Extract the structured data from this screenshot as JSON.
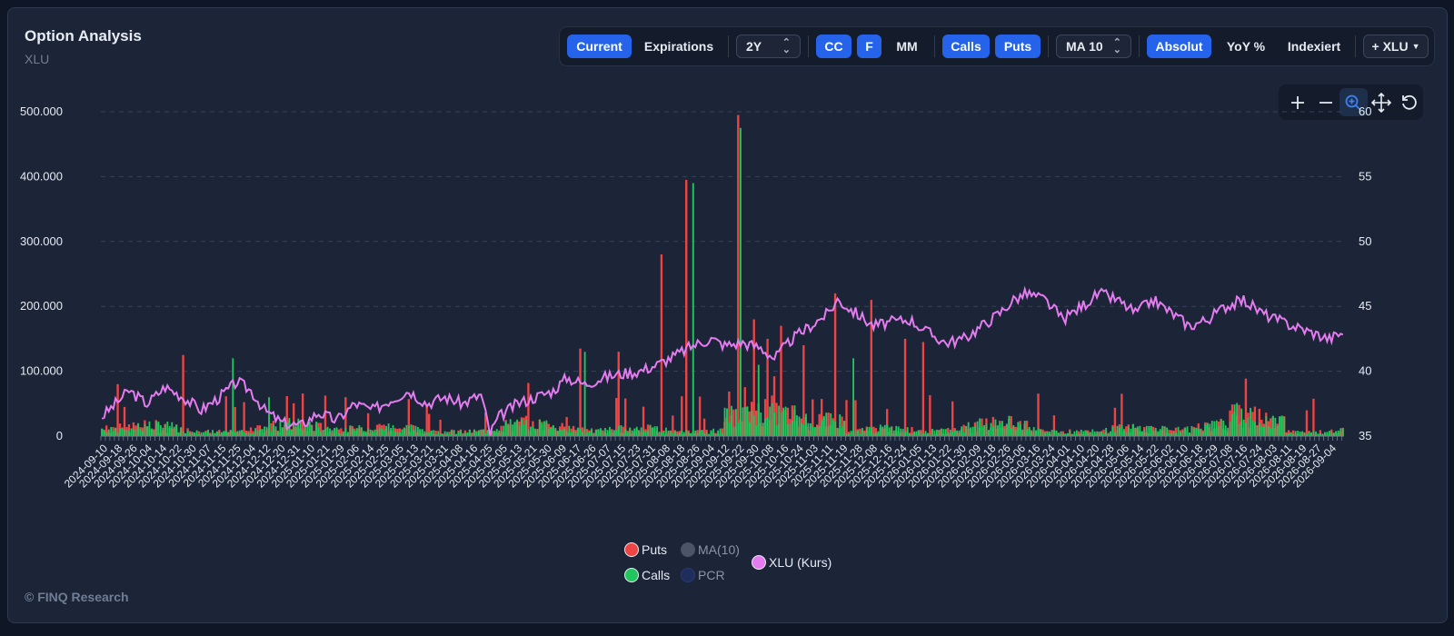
{
  "header": {
    "title": "Option Analysis",
    "subtitle": "XLU"
  },
  "toolbar": {
    "current": "Current",
    "expirations": "Expirations",
    "range": "2Y",
    "cc": "CC",
    "f": "F",
    "mm": "MM",
    "calls": "Calls",
    "puts": "Puts",
    "ma": "MA 10",
    "absolut": "Absolut",
    "yoy": "YoY %",
    "indexiert": "Indexiert",
    "add": "+ XLU"
  },
  "tools": [
    "plus-icon",
    "minus-icon",
    "zoom-icon",
    "pan-icon",
    "reset-icon"
  ],
  "footer": "© FINQ Research",
  "legend": {
    "puts": "Puts",
    "calls": "Calls",
    "ma": "MA(10)",
    "pcr": "PCR",
    "price": "XLU (Kurs)"
  },
  "colors": {
    "puts": "#ef4444",
    "calls": "#22c55e",
    "price": "#e47cf0",
    "accent": "#2563eb",
    "ma": "#4b5566",
    "pcr": "#1e2d5c"
  },
  "chart_data": {
    "type": "bar",
    "title": "",
    "y_left": {
      "ticks": [
        "0",
        "100.000",
        "200.000",
        "300.000",
        "400.000",
        "500.000"
      ],
      "ylim": [
        0,
        500000
      ]
    },
    "y_right": {
      "ticks": [
        "35",
        "40",
        "45",
        "50",
        "55",
        "60"
      ],
      "ylim": [
        35,
        60
      ]
    },
    "x_ticks": [
      "2024-09-10",
      "2024-09-18",
      "2024-09-26",
      "2024-10-04",
      "2024-10-14",
      "2024-10-22",
      "2024-10-30",
      "2024-11-07",
      "2024-11-15",
      "2024-11-25",
      "2024-12-04",
      "2024-12-12",
      "2024-12-20",
      "2024-12-31",
      "2025-01-10",
      "2025-01-21",
      "2025-01-29",
      "2025-02-06",
      "2025-02-14",
      "2025-02-25",
      "2025-03-05",
      "2025-03-13",
      "2025-03-21",
      "2025-03-31",
      "2025-04-08",
      "2025-04-16",
      "2025-04-25",
      "2025-05-05",
      "2025-05-13",
      "2025-05-21",
      "2025-05-30",
      "2025-06-09",
      "2025-06-17",
      "2025-06-26",
      "2025-07-07",
      "2025-07-15",
      "2025-07-23",
      "2025-07-31",
      "2025-08-08",
      "2025-08-18",
      "2025-08-26",
      "2025-09-04",
      "2025-09-12",
      "2025-09-22",
      "2025-09-30",
      "2025-10-08",
      "2025-10-16",
      "2025-10-24",
      "2025-11-03",
      "2025-11-11",
      "2025-11-19",
      "2025-11-28",
      "2025-12-08",
      "2025-12-16",
      "2025-12-24",
      "2026-01-05",
      "2026-01-13",
      "2026-01-22",
      "2026-01-30",
      "2026-02-09",
      "2026-02-18",
      "2026-02-26",
      "2026-03-06",
      "2026-03-16",
      "2026-03-24",
      "2026-04-01",
      "2026-04-10",
      "2026-04-20",
      "2026-04-28",
      "2026-05-06",
      "2026-05-14",
      "2026-05-22",
      "2026-06-02",
      "2026-06-10",
      "2026-06-18",
      "2026-06-29",
      "2026-07-08",
      "2026-07-16",
      "2026-07-24",
      "2026-08-03",
      "2026-08-11",
      "2026-08-19",
      "2026-08-27",
      "2026-09-04"
    ],
    "puts_spikes": [
      {
        "i": 7,
        "v": 80000
      },
      {
        "i": 36,
        "v": 125000
      },
      {
        "i": 108,
        "v": 60000
      },
      {
        "i": 212,
        "v": 135000
      },
      {
        "i": 229,
        "v": 130000
      },
      {
        "i": 248,
        "v": 280000
      },
      {
        "i": 259,
        "v": 395000
      },
      {
        "i": 282,
        "v": 495000
      },
      {
        "i": 289,
        "v": 180000
      },
      {
        "i": 295,
        "v": 150000
      },
      {
        "i": 301,
        "v": 170000
      },
      {
        "i": 311,
        "v": 140000
      },
      {
        "i": 325,
        "v": 220000
      },
      {
        "i": 341,
        "v": 210000
      },
      {
        "i": 356,
        "v": 150000
      },
      {
        "i": 364,
        "v": 145000
      }
    ],
    "calls_spikes": [
      {
        "i": 58,
        "v": 120000
      },
      {
        "i": 74,
        "v": 60000
      },
      {
        "i": 214,
        "v": 130000
      },
      {
        "i": 262,
        "v": 390000
      },
      {
        "i": 283,
        "v": 475000
      },
      {
        "i": 291,
        "v": 110000
      },
      {
        "i": 333,
        "v": 120000
      }
    ],
    "price_points": [
      [
        0,
        36.5
      ],
      [
        6,
        37.5
      ],
      [
        12,
        38.5
      ],
      [
        20,
        37.5
      ],
      [
        28,
        38.8
      ],
      [
        36,
        38
      ],
      [
        44,
        37
      ],
      [
        52,
        38
      ],
      [
        60,
        39.2
      ],
      [
        66,
        38.5
      ],
      [
        72,
        37
      ],
      [
        80,
        36
      ],
      [
        88,
        35.8
      ],
      [
        96,
        36.8
      ],
      [
        104,
        36.2
      ],
      [
        112,
        37.5
      ],
      [
        120,
        37
      ],
      [
        128,
        37.8
      ],
      [
        136,
        38.5
      ],
      [
        144,
        37.5
      ],
      [
        152,
        38
      ],
      [
        160,
        37.5
      ],
      [
        168,
        38.2
      ],
      [
        172,
        35.2
      ],
      [
        176,
        36.5
      ],
      [
        184,
        37.5
      ],
      [
        192,
        38
      ],
      [
        200,
        38.5
      ],
      [
        206,
        39.5
      ],
      [
        214,
        39
      ],
      [
        222,
        39.5
      ],
      [
        230,
        39.8
      ],
      [
        238,
        40
      ],
      [
        246,
        40.5
      ],
      [
        254,
        41.2
      ],
      [
        262,
        42
      ],
      [
        270,
        42.5
      ],
      [
        276,
        42
      ],
      [
        284,
        42.2
      ],
      [
        292,
        41.8
      ],
      [
        298,
        41
      ],
      [
        306,
        42.5
      ],
      [
        314,
        43.5
      ],
      [
        322,
        44.5
      ],
      [
        326,
        45.5
      ],
      [
        334,
        44.5
      ],
      [
        342,
        43.5
      ],
      [
        350,
        43.8
      ],
      [
        358,
        44
      ],
      [
        366,
        43
      ],
      [
        374,
        42.2
      ],
      [
        382,
        42.5
      ],
      [
        390,
        43.5
      ],
      [
        398,
        44.5
      ],
      [
        404,
        45.5
      ],
      [
        410,
        46
      ],
      [
        418,
        45.5
      ],
      [
        426,
        44
      ],
      [
        434,
        45
      ],
      [
        442,
        46
      ],
      [
        450,
        45.5
      ],
      [
        458,
        44.5
      ],
      [
        466,
        45.5
      ],
      [
        474,
        44.5
      ],
      [
        482,
        43.5
      ],
      [
        490,
        44
      ],
      [
        498,
        45
      ],
      [
        506,
        45.5
      ],
      [
        514,
        44.5
      ],
      [
        520,
        44
      ],
      [
        528,
        43.5
      ],
      [
        536,
        43
      ],
      [
        544,
        42.5
      ],
      [
        550,
        43
      ]
    ],
    "n_days": 551,
    "series": [
      {
        "name": "Puts",
        "color": "#ef4444"
      },
      {
        "name": "Calls",
        "color": "#22c55e"
      },
      {
        "name": "MA(10)",
        "color": "#4b5566"
      },
      {
        "name": "PCR",
        "color": "#1e2d5c"
      },
      {
        "name": "XLU (Kurs)",
        "color": "#e47cf0"
      }
    ],
    "grid": true,
    "legend_placement": "bottom-center"
  }
}
